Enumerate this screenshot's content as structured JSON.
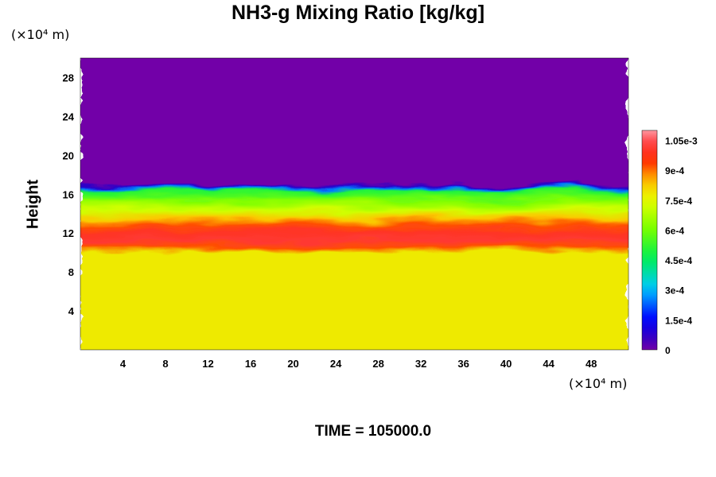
{
  "title": "NH3-g Mixing Ratio [kg/kg]",
  "y_unit_label": "(×10⁴ m)",
  "x_unit_label": "(×10⁴ m)",
  "time_label": "TIME = 105000.0",
  "chart_data": {
    "type": "heatmap",
    "title": "NH3-g Mixing Ratio [kg/kg]",
    "xlabel": "",
    "ylabel": "Height",
    "x_unit": "(×10⁴ m)",
    "y_unit": "(×10⁴ m)",
    "xlim": [
      0,
      51.5
    ],
    "ylim": [
      0,
      30
    ],
    "x_ticks": [
      4,
      8,
      12,
      16,
      20,
      24,
      28,
      32,
      36,
      40,
      44,
      48
    ],
    "y_ticks": [
      4,
      8,
      12,
      16,
      20,
      24,
      28
    ],
    "colorbar": {
      "range": [
        0,
        0.0011
      ],
      "tick_values": [
        0,
        0.00015,
        0.0003,
        0.00045,
        0.0006,
        0.00075,
        0.0009,
        0.00105
      ],
      "tick_labels": [
        "0",
        "1.5e-4",
        "3e-4",
        "4.5e-4",
        "6e-4",
        "7.5e-4",
        "9e-4",
        "1.05e-3"
      ]
    },
    "field_profile_by_height": [
      {
        "height": 0,
        "value": 0.00078
      },
      {
        "height": 10,
        "value": 0.00078
      },
      {
        "height": 10.6,
        "value": 0.00092
      },
      {
        "height": 11.3,
        "value": 0.00102
      },
      {
        "height": 12,
        "value": 0.001
      },
      {
        "height": 12.8,
        "value": 0.00092
      },
      {
        "height": 13.5,
        "value": 0.00083
      },
      {
        "height": 14.3,
        "value": 0.00072
      },
      {
        "height": 15.3,
        "value": 0.00062
      },
      {
        "height": 16.3,
        "value": 0.0005
      },
      {
        "height": 16.6,
        "value": 0.00025
      },
      {
        "height": 16.8,
        "value": 8e-05
      },
      {
        "height": 17.0,
        "value": 0
      },
      {
        "height": 30,
        "value": 0
      }
    ],
    "time": 105000.0,
    "colors": {
      "background_top": "#7200a8",
      "lower_layer": "#dcff00",
      "peak": "#ff1010"
    }
  }
}
